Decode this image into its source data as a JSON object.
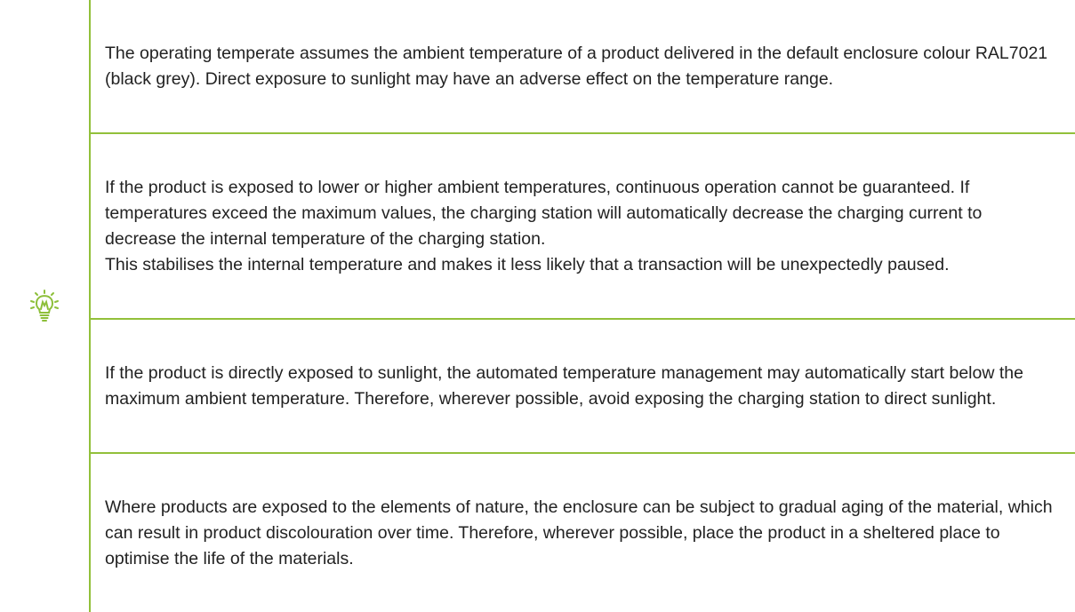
{
  "notes": [
    {
      "paragraphs": [
        "The operating temperate assumes the ambient temperature of a product delivered in the default enclosure colour RAL7021 (black grey). Direct exposure to sunlight may have an adverse effect on the temperature range."
      ]
    },
    {
      "paragraphs": [
        "If the product is exposed to lower or higher ambient temperatures, continuous operation cannot be guaranteed. If temperatures exceed the maximum values, the charging station will automatically decrease the charging current to decrease the internal temperature of the charging station.",
        "This stabilises the internal temperature and makes it less likely that a transaction will be unexpectedly paused."
      ]
    },
    {
      "paragraphs": [
        "If the product is directly exposed to sunlight, the automated temperature management may automatically start below the maximum ambient temperature. Therefore, wherever possible, avoid exposing the charging station to direct sunlight."
      ]
    },
    {
      "paragraphs": [
        "Where products are exposed to the elements of nature, the enclosure can be subject to gradual aging of the material, which can result in product discolouration over time. Therefore, wherever possible, place the product in a sheltered place to optimise the life of the materials."
      ]
    }
  ]
}
